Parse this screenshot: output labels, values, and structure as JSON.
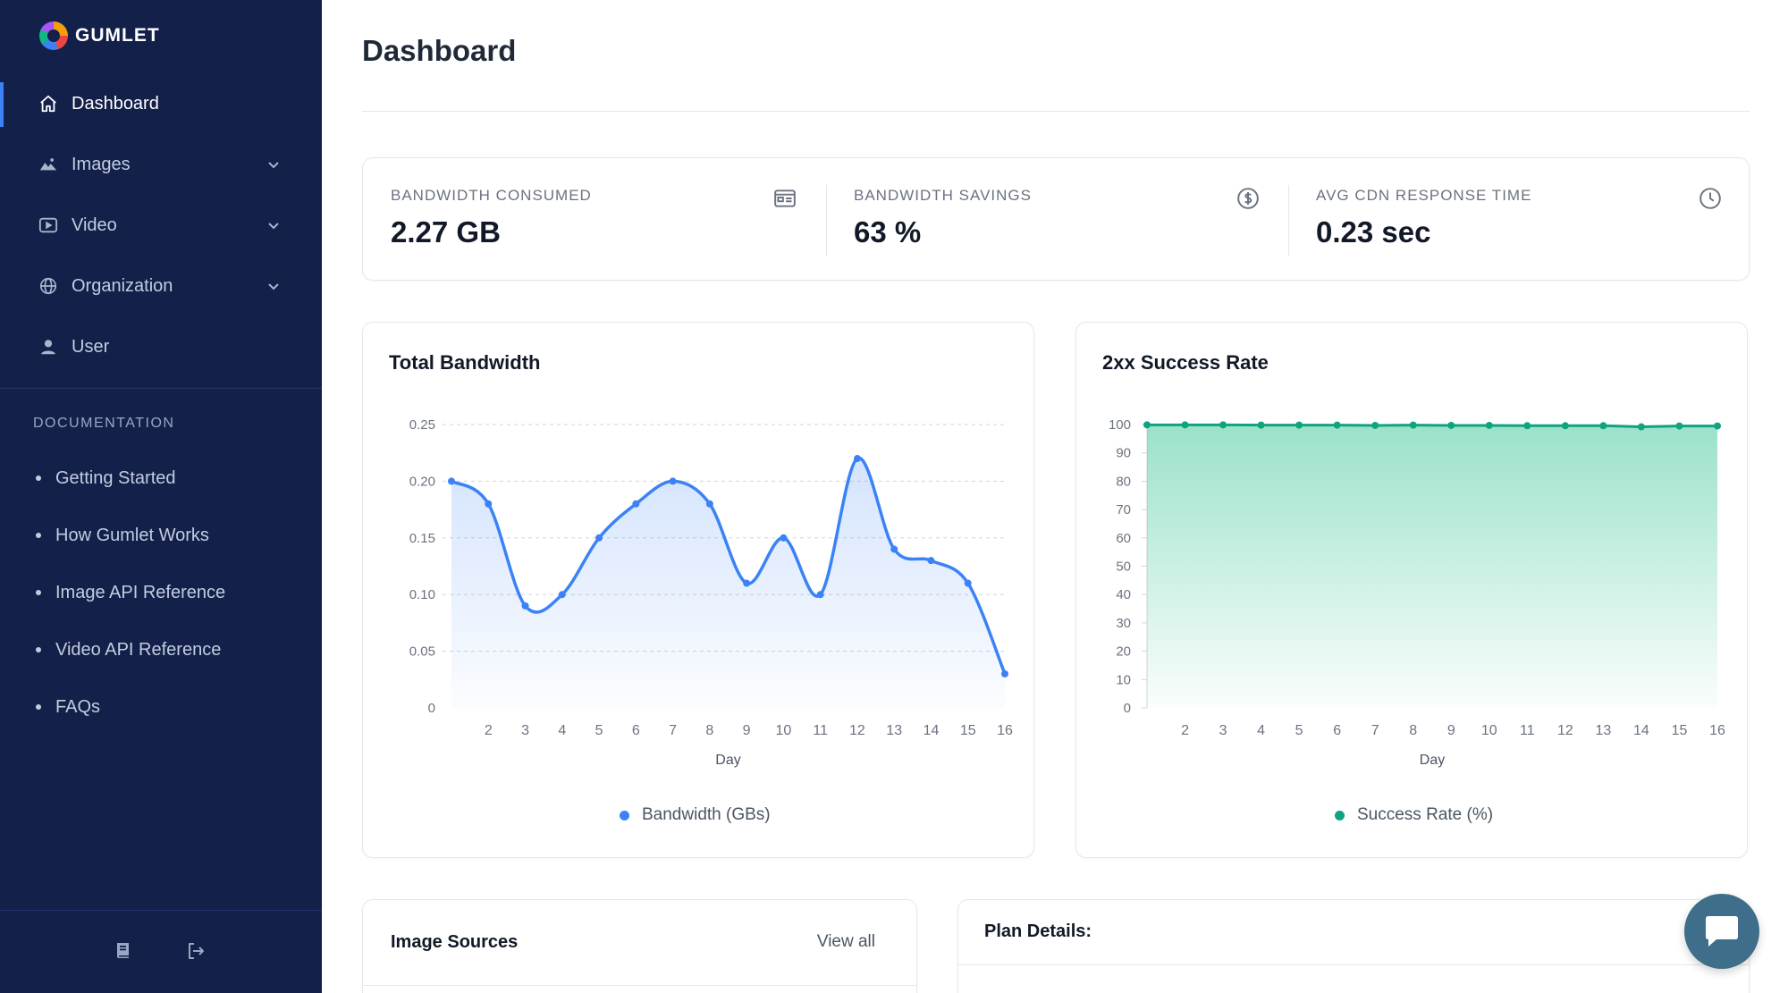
{
  "sidebar": {
    "logo_text": "GUMLET",
    "nav": [
      {
        "label": "Dashboard",
        "icon": "home-icon",
        "active": true
      },
      {
        "label": "Images",
        "icon": "image-icon",
        "expandable": true
      },
      {
        "label": "Video",
        "icon": "video-icon",
        "expandable": true
      },
      {
        "label": "Organization",
        "icon": "globe-icon",
        "expandable": true
      },
      {
        "label": "User",
        "icon": "user-icon"
      }
    ],
    "documentation_heading": "DOCUMENTATION",
    "documentation_links": [
      "Getting Started",
      "How Gumlet Works",
      "Image API Reference",
      "Video API Reference",
      "FAQs"
    ],
    "bottom_icons": [
      "book-icon",
      "logout-icon"
    ]
  },
  "main": {
    "title": "Dashboard",
    "stats": [
      {
        "label": "BANDWIDTH CONSUMED",
        "value": "2.27 GB",
        "icon": "billing-card-icon"
      },
      {
        "label": "BANDWIDTH SAVINGS",
        "value": "63 %",
        "icon": "dollar-circle-icon"
      },
      {
        "label": "AVG CDN RESPONSE TIME",
        "value": "0.23 sec",
        "icon": "clock-icon"
      }
    ],
    "image_sources": {
      "title": "Image Sources",
      "view_all": "View all"
    },
    "plan_details": {
      "title": "Plan Details:"
    }
  },
  "colors": {
    "sidebar_bg": "#12204a",
    "accent": "#3b82f6",
    "bandwidth_line": "#3b82f6",
    "success_line": "#10a37f",
    "chat_button": "#3e6e89"
  },
  "chart_data": [
    {
      "type": "line",
      "title": "Total Bandwidth",
      "xlabel": "Day",
      "ylabel": "",
      "x": [
        1,
        2,
        3,
        4,
        5,
        6,
        7,
        8,
        9,
        10,
        11,
        12,
        13,
        14,
        15,
        16
      ],
      "x_tick_labels": [
        "2",
        "3",
        "4",
        "5",
        "6",
        "7",
        "8",
        "9",
        "10",
        "11",
        "12",
        "13",
        "14",
        "15",
        "16"
      ],
      "y_tick_labels": [
        "0",
        "0.05",
        "0.10",
        "0.15",
        "0.20",
        "0.25"
      ],
      "series": [
        {
          "name": "Bandwidth (GBs)",
          "values": [
            0.2,
            0.18,
            0.09,
            0.1,
            0.15,
            0.18,
            0.2,
            0.18,
            0.11,
            0.15,
            0.1,
            0.22,
            0.14,
            0.13,
            0.11,
            0.03
          ]
        }
      ],
      "ylim": [
        0,
        0.25
      ],
      "smooth": true,
      "area_fill": true,
      "grid": "horizontal dashed",
      "legend": "bottom"
    },
    {
      "type": "area",
      "title": "2xx Success Rate",
      "xlabel": "Day",
      "ylabel": "",
      "x": [
        1,
        2,
        3,
        4,
        5,
        6,
        7,
        8,
        9,
        10,
        11,
        12,
        13,
        14,
        15,
        16
      ],
      "x_tick_labels": [
        "2",
        "3",
        "4",
        "5",
        "6",
        "7",
        "8",
        "9",
        "10",
        "11",
        "12",
        "13",
        "14",
        "15",
        "16"
      ],
      "y_tick_labels": [
        "0",
        "10",
        "20",
        "30",
        "40",
        "50",
        "60",
        "70",
        "80",
        "90",
        "100"
      ],
      "series": [
        {
          "name": "Success Rate (%)",
          "values": [
            99.9,
            99.9,
            99.9,
            99.8,
            99.8,
            99.8,
            99.7,
            99.8,
            99.7,
            99.7,
            99.6,
            99.6,
            99.6,
            99.2,
            99.5,
            99.5
          ]
        }
      ],
      "ylim": [
        0,
        100
      ],
      "grid": "off",
      "legend": "bottom"
    }
  ]
}
